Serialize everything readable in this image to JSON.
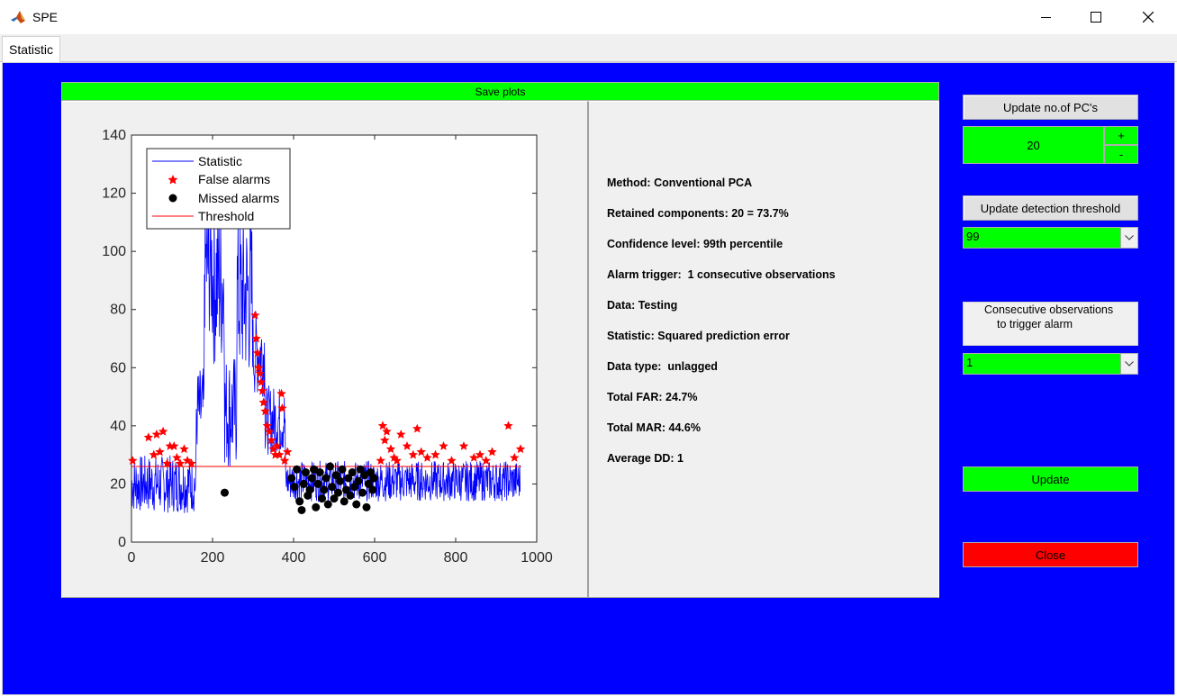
{
  "window": {
    "title": "SPE"
  },
  "tabs": [
    {
      "label": "Statistic"
    }
  ],
  "save_plots_label": "Save plots",
  "info_lines": [
    "Method: Conventional PCA",
    "Retained components: 20 = 73.7%",
    "Confidence level: 99th percentile",
    "Alarm trigger:  1 consecutive observations",
    "Data: Testing",
    "Statistic: Squared prediction error",
    "Data type:  unlagged",
    "Total FAR: 24.7%",
    "Total MAR: 44.6%",
    "Average DD: 1"
  ],
  "controls": {
    "update_pcs_label": "Update no.of PC's",
    "pcs_value": "20",
    "plus_label": "+",
    "minus_label": "-",
    "update_threshold_label": "Update detection threshold",
    "threshold_value": "99",
    "consecutive_label_line1": "Consecutive observations",
    "consecutive_label_line2": "to trigger alarm",
    "consecutive_value": "1",
    "update_label": "Update",
    "close_label": "Close"
  },
  "colors": {
    "panel_blue": "#0000ff",
    "green": "#00ff00",
    "red": "#ff0000",
    "statistic_line": "#0000ff",
    "threshold_line": "#ff0000"
  },
  "chart_data": {
    "type": "line",
    "xlim": [
      0,
      1000
    ],
    "ylim": [
      0,
      140
    ],
    "xticks": [
      0,
      200,
      400,
      600,
      800,
      1000
    ],
    "yticks": [
      0,
      20,
      40,
      60,
      80,
      100,
      120,
      140
    ],
    "threshold": 26,
    "legend": {
      "position": "top-left",
      "entries": [
        "Statistic",
        "False alarms",
        "Missed alarms",
        "Threshold"
      ]
    },
    "statistic_segments": [
      {
        "x0": 0,
        "x1": 160,
        "base": 20,
        "amp": 10
      },
      {
        "x0": 160,
        "x1": 180,
        "base": 45,
        "amp": 15
      },
      {
        "x0": 180,
        "x1": 200,
        "base": 95,
        "amp": 25
      },
      {
        "x0": 200,
        "x1": 230,
        "base": 90,
        "amp": 30
      },
      {
        "x0": 230,
        "x1": 260,
        "base": 45,
        "amp": 20
      },
      {
        "x0": 260,
        "x1": 300,
        "base": 85,
        "amp": 30
      },
      {
        "x0": 300,
        "x1": 330,
        "base": 65,
        "amp": 15
      },
      {
        "x0": 330,
        "x1": 380,
        "base": 42,
        "amp": 12
      },
      {
        "x0": 380,
        "x1": 960,
        "base": 21,
        "amp": 7
      }
    ],
    "false_alarms": [
      [
        3,
        28
      ],
      [
        42,
        36
      ],
      [
        55,
        30
      ],
      [
        62,
        37
      ],
      [
        70,
        31
      ],
      [
        78,
        38
      ],
      [
        88,
        27
      ],
      [
        95,
        33
      ],
      [
        105,
        33
      ],
      [
        112,
        29
      ],
      [
        120,
        27
      ],
      [
        130,
        32
      ],
      [
        138,
        28
      ],
      [
        148,
        27
      ],
      [
        305,
        78
      ],
      [
        308,
        70
      ],
      [
        311,
        65
      ],
      [
        314,
        60
      ],
      [
        317,
        58
      ],
      [
        320,
        55
      ],
      [
        323,
        52
      ],
      [
        326,
        48
      ],
      [
        330,
        45
      ],
      [
        335,
        40
      ],
      [
        340,
        38
      ],
      [
        345,
        35
      ],
      [
        350,
        32
      ],
      [
        355,
        30
      ],
      [
        360,
        33
      ],
      [
        365,
        30
      ],
      [
        370,
        51
      ],
      [
        372,
        46
      ],
      [
        378,
        28
      ],
      [
        385,
        31
      ],
      [
        615,
        28
      ],
      [
        620,
        40
      ],
      [
        625,
        35
      ],
      [
        630,
        38
      ],
      [
        640,
        32
      ],
      [
        648,
        29
      ],
      [
        655,
        28
      ],
      [
        665,
        37
      ],
      [
        680,
        33
      ],
      [
        695,
        30
      ],
      [
        705,
        39
      ],
      [
        715,
        31
      ],
      [
        730,
        29
      ],
      [
        750,
        30
      ],
      [
        770,
        33
      ],
      [
        790,
        28
      ],
      [
        820,
        33
      ],
      [
        845,
        29
      ],
      [
        860,
        30
      ],
      [
        875,
        28
      ],
      [
        890,
        31
      ],
      [
        930,
        40
      ],
      [
        945,
        29
      ],
      [
        960,
        32
      ]
    ],
    "missed_alarms": [
      [
        230,
        17
      ],
      [
        395,
        22
      ],
      [
        402,
        19
      ],
      [
        408,
        25
      ],
      [
        415,
        14
      ],
      [
        420,
        11
      ],
      [
        425,
        20
      ],
      [
        430,
        24
      ],
      [
        435,
        16
      ],
      [
        440,
        18
      ],
      [
        445,
        22
      ],
      [
        450,
        25
      ],
      [
        455,
        12
      ],
      [
        460,
        20
      ],
      [
        465,
        24
      ],
      [
        470,
        15
      ],
      [
        475,
        18
      ],
      [
        480,
        22
      ],
      [
        485,
        13
      ],
      [
        490,
        26
      ],
      [
        495,
        19
      ],
      [
        500,
        15
      ],
      [
        505,
        23
      ],
      [
        510,
        17
      ],
      [
        515,
        21
      ],
      [
        520,
        25
      ],
      [
        525,
        14
      ],
      [
        530,
        18
      ],
      [
        535,
        22
      ],
      [
        540,
        16
      ],
      [
        545,
        24
      ],
      [
        550,
        19
      ],
      [
        555,
        13
      ],
      [
        560,
        21
      ],
      [
        565,
        25
      ],
      [
        570,
        17
      ],
      [
        575,
        23
      ],
      [
        580,
        12
      ],
      [
        585,
        20
      ],
      [
        590,
        24
      ],
      [
        595,
        18
      ],
      [
        598,
        22
      ]
    ]
  }
}
